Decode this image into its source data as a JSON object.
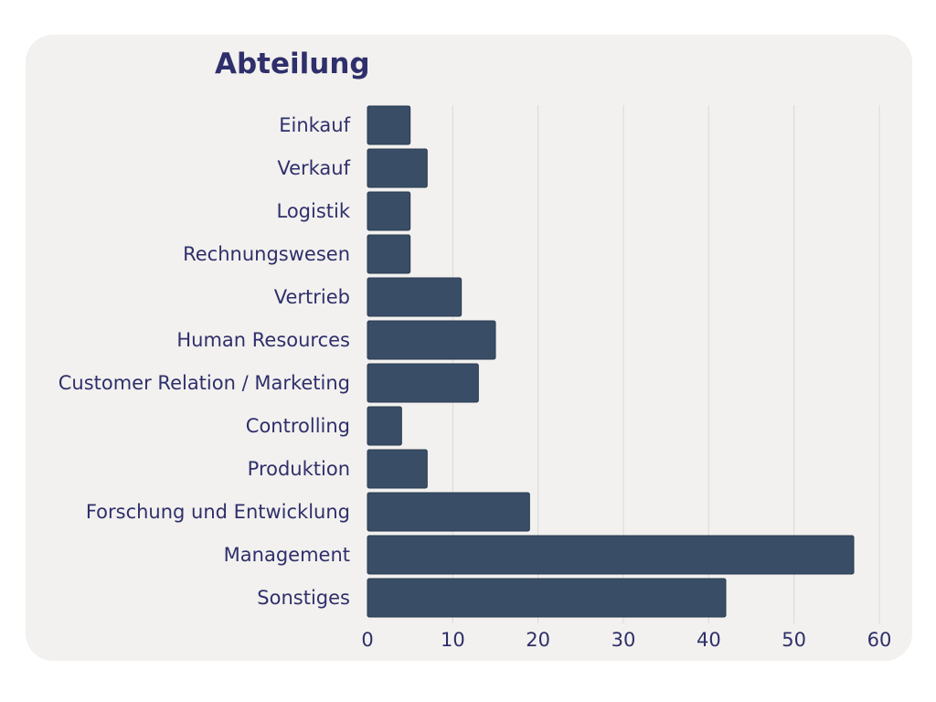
{
  "chart_data": {
    "type": "bar",
    "orientation": "horizontal",
    "title": "Abteilung",
    "categories": [
      "Einkauf",
      "Verkauf",
      "Logistik",
      "Rechnungswesen",
      "Vertrieb",
      "Human Resources",
      "Customer Relation / Marketing",
      "Controlling",
      "Produktion",
      "Forschung und Entwicklung",
      "Management",
      "Sonstiges"
    ],
    "values": [
      5,
      7,
      5,
      5,
      11,
      15,
      13,
      4,
      7,
      19,
      57,
      42
    ],
    "xlim": [
      0,
      60
    ],
    "xticks": [
      0,
      10,
      20,
      30,
      40,
      50,
      60
    ],
    "grid": "vertical",
    "colors": {
      "bar": "#394d66",
      "text": "#2f2f6b",
      "background": "#f2f1ef"
    }
  }
}
